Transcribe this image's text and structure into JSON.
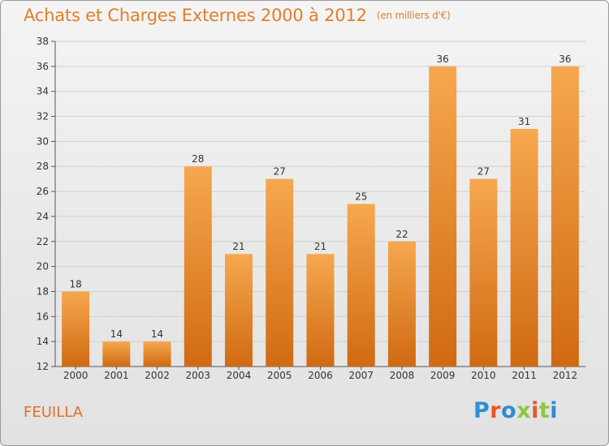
{
  "title": "Achats et Charges Externes 2000 à 2012",
  "unit": "(en milliers d'€)",
  "commune": "FEUILLA",
  "logo": "Proxiti",
  "colors": {
    "bar_top": "#f6a84e",
    "bar_bottom": "#d06a12",
    "title": "#e07f2a",
    "grid": "#d0d0d0",
    "logo": [
      "#2d8fd1",
      "#e8562a",
      "#2d8fd1",
      "#8ec63f",
      "#e8562a",
      "#8ec63f",
      "#2d8fd1"
    ]
  },
  "chart_data": {
    "type": "bar",
    "categories": [
      "2000",
      "2001",
      "2002",
      "2003",
      "2004",
      "2005",
      "2006",
      "2007",
      "2008",
      "2009",
      "2010",
      "2011",
      "2012"
    ],
    "values": [
      18,
      14,
      14,
      28,
      21,
      27,
      21,
      25,
      22,
      36,
      27,
      31,
      36
    ],
    "ylim": [
      12,
      38
    ],
    "yticks": [
      12,
      14,
      16,
      18,
      20,
      22,
      24,
      26,
      28,
      30,
      32,
      34,
      36,
      38
    ],
    "grid": true,
    "data_labels": true
  }
}
